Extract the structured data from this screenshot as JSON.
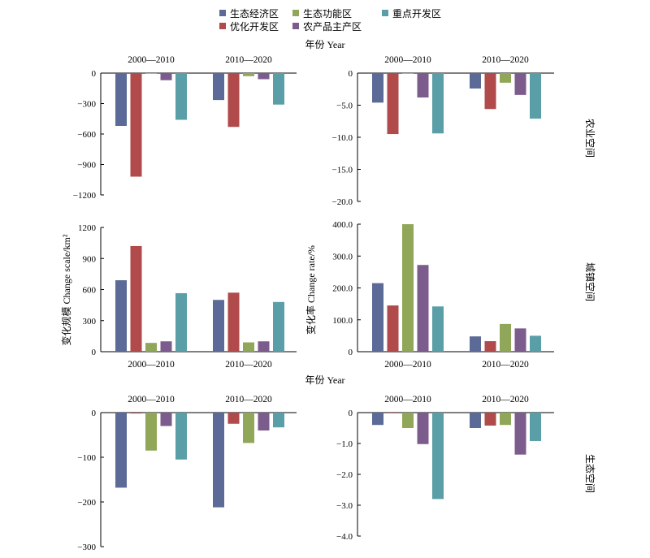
{
  "legend": [
    {
      "name": "生态经济区",
      "color": "#5b6a96"
    },
    {
      "name": "生态功能区",
      "color": "#90a759"
    },
    {
      "name": "重点开发区",
      "color": "#5a9ea8"
    },
    {
      "name": "优化开发区",
      "color": "#b04a4b"
    },
    {
      "name": "农产品主产区",
      "color": "#7c5c8c"
    }
  ],
  "labels": {
    "year_top": "年份 Year",
    "year_mid": "年份 Year",
    "ylabel_left": "变化规模 Change scale/km²",
    "ylabel_right": "变化率 Change rate/%",
    "row_farm": "农业空间",
    "row_urban": "城镇空间",
    "row_eco": "生态空间"
  },
  "chart_data": [
    {
      "type": "bar",
      "row": "农业空间",
      "measure": "scale",
      "categories": [
        "2000—2010",
        "2010—2020"
      ],
      "ylim": [
        -1200,
        0
      ],
      "yticks": [
        -1200,
        -900,
        -600,
        -300,
        0
      ],
      "tick_labels": [
        "−1200",
        "−900",
        "−600",
        "−300",
        "0"
      ],
      "series": [
        {
          "name": "生态经济区",
          "values": [
            -520,
            -265
          ]
        },
        {
          "name": "优化开发区",
          "values": [
            -1020,
            -530
          ]
        },
        {
          "name": "生态功能区",
          "values": [
            -5,
            -30
          ]
        },
        {
          "name": "农产品主产区",
          "values": [
            -70,
            -60
          ]
        },
        {
          "name": "重点开发区",
          "values": [
            -460,
            -310
          ]
        }
      ]
    },
    {
      "type": "bar",
      "row": "农业空间",
      "measure": "rate",
      "categories": [
        "2000—2010",
        "2010—2020"
      ],
      "ylim": [
        -20,
        0
      ],
      "yticks": [
        -20,
        -15,
        -10,
        -5,
        0
      ],
      "tick_labels": [
        "−20.0",
        "−15.0",
        "−10.0",
        "−5.0",
        "0"
      ],
      "series": [
        {
          "name": "生态经济区",
          "values": [
            -4.6,
            -2.4
          ]
        },
        {
          "name": "优化开发区",
          "values": [
            -9.5,
            -5.6
          ]
        },
        {
          "name": "生态功能区",
          "values": [
            -0.1,
            -1.5
          ]
        },
        {
          "name": "农产品主产区",
          "values": [
            -3.8,
            -3.4
          ]
        },
        {
          "name": "重点开发区",
          "values": [
            -9.4,
            -7.1
          ]
        }
      ]
    },
    {
      "type": "bar",
      "row": "城镇空间",
      "measure": "scale",
      "categories": [
        "2000—2010",
        "2010—2020"
      ],
      "ylim": [
        0,
        1200
      ],
      "yticks": [
        0,
        300,
        600,
        900,
        1200
      ],
      "tick_labels": [
        "0",
        "300",
        "600",
        "900",
        "1200"
      ],
      "series": [
        {
          "name": "生态经济区",
          "values": [
            690,
            500
          ]
        },
        {
          "name": "优化开发区",
          "values": [
            1020,
            570
          ]
        },
        {
          "name": "生态功能区",
          "values": [
            85,
            90
          ]
        },
        {
          "name": "农产品主产区",
          "values": [
            100,
            100
          ]
        },
        {
          "name": "重点开发区",
          "values": [
            565,
            480
          ]
        }
      ]
    },
    {
      "type": "bar",
      "row": "城镇空间",
      "measure": "rate",
      "categories": [
        "2000—2010",
        "2010—2020"
      ],
      "ylim": [
        0,
        400
      ],
      "yticks": [
        0,
        100,
        200,
        300,
        400
      ],
      "tick_labels": [
        "0",
        "100.0",
        "200.0",
        "300.0",
        "400.0"
      ],
      "series": [
        {
          "name": "生态经济区",
          "values": [
            215,
            48
          ]
        },
        {
          "name": "优化开发区",
          "values": [
            145,
            33
          ]
        },
        {
          "name": "生态功能区",
          "values": [
            400,
            87
          ]
        },
        {
          "name": "农产品主产区",
          "values": [
            272,
            73
          ]
        },
        {
          "name": "重点开发区",
          "values": [
            142,
            50
          ]
        }
      ]
    },
    {
      "type": "bar",
      "row": "生态空间",
      "measure": "scale",
      "categories": [
        "2000—2010",
        "2010—2020"
      ],
      "ylim": [
        -300,
        0
      ],
      "yticks": [
        -300,
        -200,
        -100,
        0
      ],
      "tick_labels": [
        "−300",
        "−200",
        "−100",
        "0"
      ],
      "series": [
        {
          "name": "生态经济区",
          "values": [
            -168,
            -212
          ]
        },
        {
          "name": "优化开发区",
          "values": [
            -2,
            -25
          ]
        },
        {
          "name": "生态功能区",
          "values": [
            -85,
            -68
          ]
        },
        {
          "name": "农产品主产区",
          "values": [
            -30,
            -40
          ]
        },
        {
          "name": "重点开发区",
          "values": [
            -105,
            -33
          ]
        }
      ]
    },
    {
      "type": "bar",
      "row": "生态空间",
      "measure": "rate",
      "categories": [
        "2000—2010",
        "2010—2020"
      ],
      "ylim": [
        -4,
        0
      ],
      "yticks": [
        -4,
        -3,
        -2,
        -1,
        0
      ],
      "tick_labels": [
        "−4.0",
        "−3.0",
        "−2.0",
        "−1.0",
        "0"
      ],
      "series": [
        {
          "name": "生态经济区",
          "values": [
            -0.4,
            -0.5
          ]
        },
        {
          "name": "优化开发区",
          "values": [
            -0.02,
            -0.42
          ]
        },
        {
          "name": "生态功能区",
          "values": [
            -0.5,
            -0.4
          ]
        },
        {
          "name": "农产品主产区",
          "values": [
            -1.02,
            -1.36
          ]
        },
        {
          "name": "重点开发区",
          "values": [
            -2.8,
            -0.92
          ]
        }
      ]
    }
  ]
}
